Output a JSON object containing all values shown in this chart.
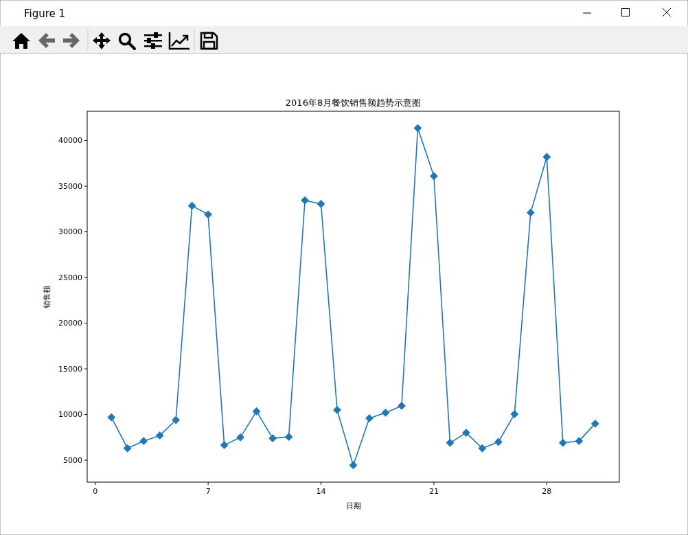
{
  "chart_data": {
    "type": "line",
    "title": "2016年8月餐饮销售额趋势示意图",
    "xlabel": "日期",
    "ylabel": "销售额",
    "annotations": [
      "Figure 1"
    ],
    "x": [
      1,
      2,
      3,
      4,
      5,
      6,
      7,
      8,
      9,
      10,
      11,
      12,
      13,
      14,
      15,
      16,
      17,
      18,
      19,
      20,
      21,
      22,
      23,
      24,
      25,
      26,
      27,
      28,
      29,
      30,
      31
    ],
    "series": [
      {
        "color": "#1f77b4",
        "values": [
          9700,
          6300,
          7100,
          7700,
          9400,
          32850,
          31900,
          6650,
          7500,
          10350,
          7400,
          7550,
          33450,
          33050,
          10500,
          4450,
          9600,
          10200,
          10950,
          41350,
          36100,
          6900,
          8000,
          6300,
          7000,
          10050,
          32100,
          38200,
          6900,
          7100,
          9000
        ]
      }
    ],
    "xlim": [
      -0.5,
      32.5
    ],
    "xticks": [
      0,
      7,
      14,
      21,
      28
    ],
    "ylim": [
      2600,
      43200
    ],
    "yticks": [
      5000,
      10000,
      15000,
      20000,
      25000,
      30000,
      35000,
      40000
    ],
    "grid": false,
    "marker": "diamond",
    "line_style": "solid"
  }
}
